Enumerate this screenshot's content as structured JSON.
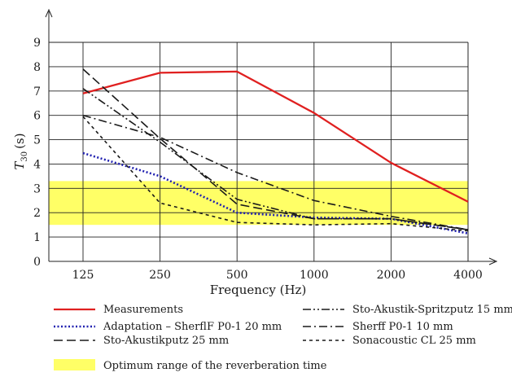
{
  "chart_data": {
    "type": "line",
    "xlabel": "Frequency (Hz)",
    "ylabel_main": "T",
    "ylabel_sub": "30",
    "ylabel_unit": "(s)",
    "x_categories": [
      "125",
      "250",
      "500",
      "1000",
      "2000",
      "4000"
    ],
    "y_ticks": [
      "0",
      "1",
      "2",
      "3",
      "4",
      "5",
      "6",
      "7",
      "8",
      "9"
    ],
    "ylim": [
      0,
      9
    ],
    "grid": true,
    "optimum_band": {
      "from": 1.5,
      "to": 3.3,
      "color": "#ffff66",
      "label": "Optimum range of the reverberation time"
    },
    "series": [
      {
        "name": "Measurements",
        "color": "#e02020",
        "dash": "solid",
        "values": [
          6.9,
          7.75,
          7.8,
          6.1,
          4.05,
          2.45
        ]
      },
      {
        "name": "Adaptation – SherflF P0-1 20 mm",
        "color": "#2020b0",
        "dash": "dotted",
        "values": [
          4.45,
          3.5,
          2.0,
          1.8,
          1.75,
          1.15
        ]
      },
      {
        "name": "Sto-Akustikputz 25 mm",
        "color": "#1a1a1a",
        "dash": "longdash",
        "values": [
          7.9,
          5.05,
          2.35,
          1.75,
          1.75,
          1.3
        ]
      },
      {
        "name": "Sto-Akustik-Spritzputz 15 mm",
        "color": "#1a1a1a",
        "dash": "dashdotdot",
        "values": [
          7.1,
          4.9,
          2.55,
          1.75,
          1.75,
          1.3
        ]
      },
      {
        "name": "Sherff P0-1 10 mm",
        "color": "#1a1a1a",
        "dash": "dashdot",
        "values": [
          6.0,
          5.1,
          3.65,
          2.5,
          1.85,
          1.3
        ]
      },
      {
        "name": "Sonacoustic CL 25 mm",
        "color": "#1a1a1a",
        "dash": "shortdash",
        "values": [
          5.95,
          2.4,
          1.6,
          1.5,
          1.55,
          1.25
        ]
      }
    ]
  }
}
